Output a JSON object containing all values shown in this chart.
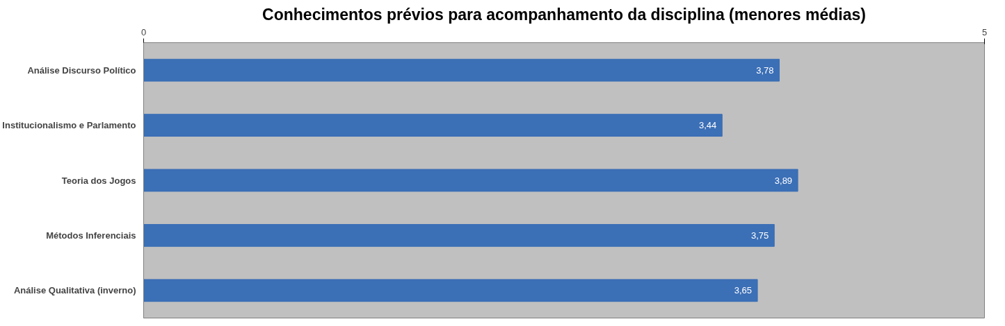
{
  "chart_data": {
    "type": "bar",
    "orientation": "horizontal",
    "title": "Conhecimentos prévios para acompanhamento da disciplina (menores médias)",
    "categories": [
      "Análise Discurso Político",
      "Institucionalismo e Parlamento",
      "Teoria dos Jogos",
      "Métodos Inferenciais",
      "Análise Qualitativa (inverno)"
    ],
    "values": [
      3.78,
      3.44,
      3.89,
      3.75,
      3.65
    ],
    "value_labels": [
      "3,78",
      "3,44",
      "3,89",
      "3,75",
      "3,65"
    ],
    "color": "#3b6fb6",
    "xlim": [
      0,
      5
    ],
    "xticks": [
      0,
      5
    ],
    "grid": false
  }
}
